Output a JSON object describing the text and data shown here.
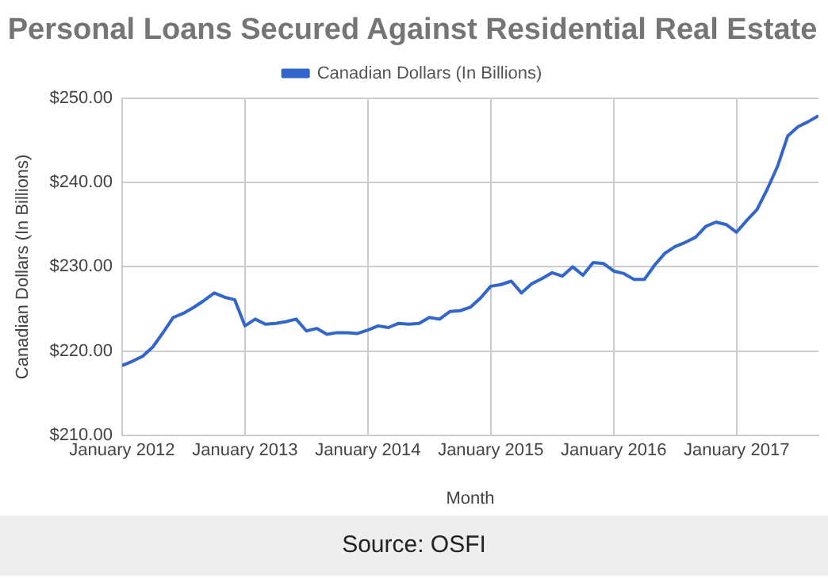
{
  "chart_data": {
    "type": "line",
    "title": "Personal Loans Secured Against Residential Real Estate",
    "xlabel": "Month",
    "ylabel": "Canadian Dollars (In Billions)",
    "annotations": [
      "Source: OSFI"
    ],
    "x": [
      "2012-01",
      "2012-02",
      "2012-03",
      "2012-04",
      "2012-05",
      "2012-06",
      "2012-07",
      "2012-08",
      "2012-09",
      "2012-10",
      "2012-11",
      "2012-12",
      "2013-01",
      "2013-02",
      "2013-03",
      "2013-04",
      "2013-05",
      "2013-06",
      "2013-07",
      "2013-08",
      "2013-09",
      "2013-10",
      "2013-11",
      "2013-12",
      "2014-01",
      "2014-02",
      "2014-03",
      "2014-04",
      "2014-05",
      "2014-06",
      "2014-07",
      "2014-08",
      "2014-09",
      "2014-10",
      "2014-11",
      "2014-12",
      "2015-01",
      "2015-02",
      "2015-03",
      "2015-04",
      "2015-05",
      "2015-06",
      "2015-07",
      "2015-08",
      "2015-09",
      "2015-10",
      "2015-11",
      "2015-12",
      "2016-01",
      "2016-02",
      "2016-03",
      "2016-04",
      "2016-05",
      "2016-06",
      "2016-07",
      "2016-08",
      "2016-09",
      "2016-10",
      "2016-11",
      "2016-12",
      "2017-01",
      "2017-02",
      "2017-03",
      "2017-04",
      "2017-05",
      "2017-06",
      "2017-07",
      "2017-08",
      "2017-09"
    ],
    "series": [
      {
        "name": "Canadian Dollars (In Billions)",
        "color": "#3366cc",
        "values": [
          218.3,
          218.8,
          219.4,
          220.5,
          222.2,
          224.0,
          224.5,
          225.2,
          226.0,
          226.9,
          226.4,
          226.1,
          223.0,
          223.8,
          223.2,
          223.3,
          223.5,
          223.8,
          222.4,
          222.7,
          222.0,
          222.2,
          222.2,
          222.1,
          222.5,
          223.0,
          222.8,
          223.3,
          223.2,
          223.3,
          224.0,
          223.8,
          224.7,
          224.8,
          225.2,
          226.3,
          227.7,
          227.9,
          228.3,
          226.9,
          228.0,
          228.6,
          229.3,
          228.9,
          230.0,
          229.0,
          230.5,
          230.4,
          229.5,
          229.2,
          228.5,
          228.5,
          230.2,
          231.6,
          232.4,
          232.9,
          233.5,
          234.8,
          235.3,
          235.0,
          234.1,
          235.5,
          236.8,
          239.2,
          241.9,
          245.5,
          246.6,
          247.2,
          247.9
        ]
      }
    ],
    "xlim": [
      "2012-01",
      "2017-09"
    ],
    "xticks": [
      {
        "value": "2012-01",
        "label": "January 2012"
      },
      {
        "value": "2013-01",
        "label": "January 2013"
      },
      {
        "value": "2014-01",
        "label": "January 2014"
      },
      {
        "value": "2015-01",
        "label": "January 2015"
      },
      {
        "value": "2016-01",
        "label": "January 2016"
      },
      {
        "value": "2017-01",
        "label": "January 2017"
      }
    ],
    "ylim": [
      210,
      250
    ],
    "yticks": [
      {
        "value": 210,
        "label": "$210.00"
      },
      {
        "value": 220,
        "label": "$220.00"
      },
      {
        "value": 230,
        "label": "$230.00"
      },
      {
        "value": 240,
        "label": "$240.00"
      },
      {
        "value": 250,
        "label": "$250.00"
      }
    ],
    "grid": true,
    "legend": "top",
    "marker": "none",
    "line_style": "solid"
  }
}
